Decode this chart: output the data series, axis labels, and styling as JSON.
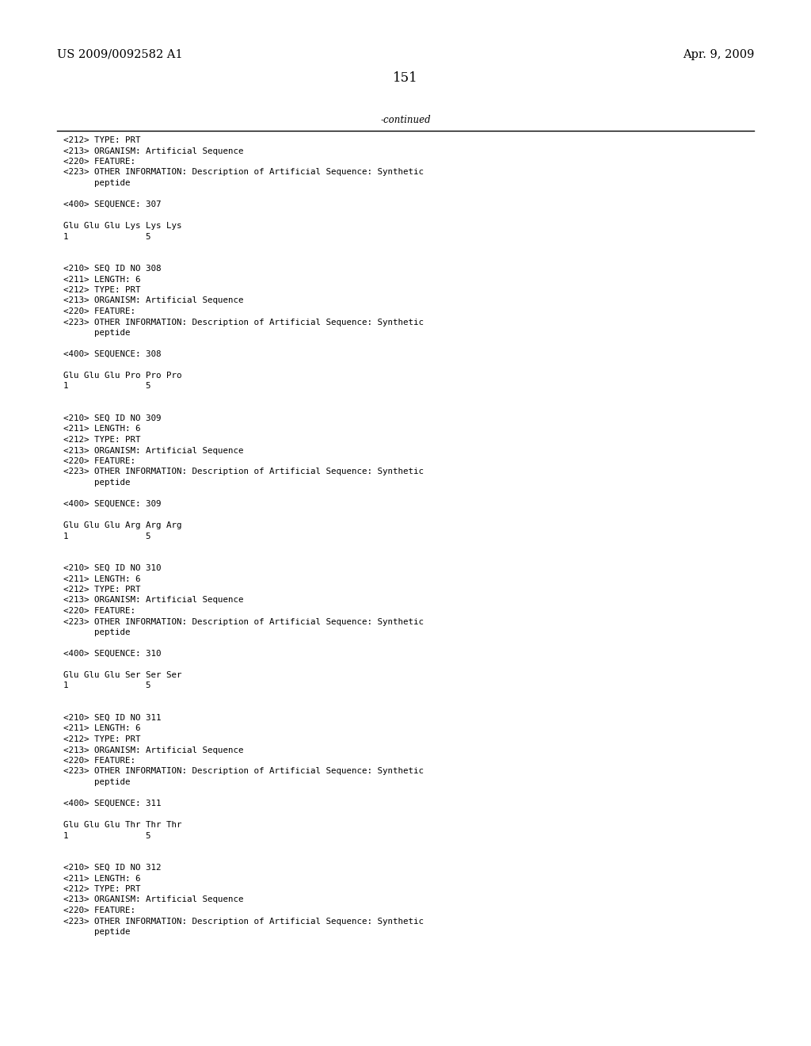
{
  "patent_left": "US 2009/0092582 A1",
  "patent_right": "Apr. 9, 2009",
  "page_number": "151",
  "continued_label": "-continued",
  "background_color": "#ffffff",
  "text_color": "#000000",
  "font_size_header": 10.5,
  "font_size_body": 8.5,
  "font_size_page": 12,
  "lines": [
    "<212> TYPE: PRT",
    "<213> ORGANISM: Artificial Sequence",
    "<220> FEATURE:",
    "<223> OTHER INFORMATION: Description of Artificial Sequence: Synthetic",
    "      peptide",
    "",
    "<400> SEQUENCE: 307",
    "",
    "Glu Glu Glu Lys Lys Lys",
    "1               5",
    "",
    "",
    "<210> SEQ ID NO 308",
    "<211> LENGTH: 6",
    "<212> TYPE: PRT",
    "<213> ORGANISM: Artificial Sequence",
    "<220> FEATURE:",
    "<223> OTHER INFORMATION: Description of Artificial Sequence: Synthetic",
    "      peptide",
    "",
    "<400> SEQUENCE: 308",
    "",
    "Glu Glu Glu Pro Pro Pro",
    "1               5",
    "",
    "",
    "<210> SEQ ID NO 309",
    "<211> LENGTH: 6",
    "<212> TYPE: PRT",
    "<213> ORGANISM: Artificial Sequence",
    "<220> FEATURE:",
    "<223> OTHER INFORMATION: Description of Artificial Sequence: Synthetic",
    "      peptide",
    "",
    "<400> SEQUENCE: 309",
    "",
    "Glu Glu Glu Arg Arg Arg",
    "1               5",
    "",
    "",
    "<210> SEQ ID NO 310",
    "<211> LENGTH: 6",
    "<212> TYPE: PRT",
    "<213> ORGANISM: Artificial Sequence",
    "<220> FEATURE:",
    "<223> OTHER INFORMATION: Description of Artificial Sequence: Synthetic",
    "      peptide",
    "",
    "<400> SEQUENCE: 310",
    "",
    "Glu Glu Glu Ser Ser Ser",
    "1               5",
    "",
    "",
    "<210> SEQ ID NO 311",
    "<211> LENGTH: 6",
    "<212> TYPE: PRT",
    "<213> ORGANISM: Artificial Sequence",
    "<220> FEATURE:",
    "<223> OTHER INFORMATION: Description of Artificial Sequence: Synthetic",
    "      peptide",
    "",
    "<400> SEQUENCE: 311",
    "",
    "Glu Glu Glu Thr Thr Thr",
    "1               5",
    "",
    "",
    "<210> SEQ ID NO 312",
    "<211> LENGTH: 6",
    "<212> TYPE: PRT",
    "<213> ORGANISM: Artificial Sequence",
    "<220> FEATURE:",
    "<223> OTHER INFORMATION: Description of Artificial Sequence: Synthetic",
    "      peptide"
  ]
}
